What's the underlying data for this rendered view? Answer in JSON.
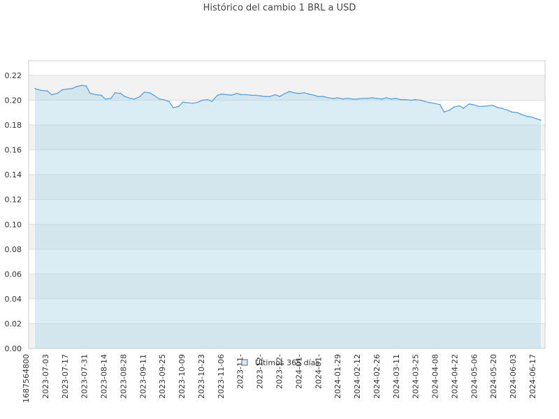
{
  "title": "Histórico del cambio 1 BRL a USD",
  "chart_data": {
    "type": "area",
    "title": "Histórico del cambio 1 BRL a USD",
    "xlabel": "",
    "ylabel": "",
    "ylim": [
      0,
      0.22
    ],
    "yticks": [
      "0.00",
      "0.02",
      "0.04",
      "0.06",
      "0.08",
      "0.10",
      "0.12",
      "0.14",
      "0.16",
      "0.18",
      "0.20",
      "0.22"
    ],
    "xticks": [
      "1687564800",
      "2023-07-03",
      "2023-07-17",
      "2023-07-31",
      "2023-08-14",
      "2023-08-28",
      "2023-09-11",
      "2023-09-25",
      "2023-10-09",
      "2023-10-23",
      "2023-11-06",
      "2023-11-",
      "2023-12-",
      "2023-12-",
      "2024-01-",
      "2024-01-",
      "2024-01-29",
      "2024-02-12",
      "2024-02-26",
      "2024-03-11",
      "2024-03-25",
      "2024-04-08",
      "2024-04-22",
      "2024-05-06",
      "2024-05-20",
      "2024-06-03",
      "2024-06-17"
    ],
    "grid": true,
    "legend_position": "bottom-center",
    "series": [
      {
        "name": "Últimos 365 días",
        "line_color": "#5aa0dc",
        "fill_color": "#add8e6",
        "x": [
          "2023-06-24",
          "2023-06-28",
          "2023-07-03",
          "2023-07-06",
          "2023-07-10",
          "2023-07-14",
          "2023-07-17",
          "2023-07-21",
          "2023-07-24",
          "2023-07-28",
          "2023-07-31",
          "2023-08-03",
          "2023-08-07",
          "2023-08-11",
          "2023-08-14",
          "2023-08-18",
          "2023-08-21",
          "2023-08-25",
          "2023-08-28",
          "2023-09-01",
          "2023-09-04",
          "2023-09-08",
          "2023-09-11",
          "2023-09-15",
          "2023-09-18",
          "2023-09-22",
          "2023-09-25",
          "2023-09-29",
          "2023-10-02",
          "2023-10-06",
          "2023-10-09",
          "2023-10-13",
          "2023-10-16",
          "2023-10-20",
          "2023-10-23",
          "2023-10-27",
          "2023-10-30",
          "2023-11-03",
          "2023-11-06",
          "2023-11-10",
          "2023-11-13",
          "2023-11-17",
          "2023-11-20",
          "2023-11-24",
          "2023-11-27",
          "2023-12-01",
          "2023-12-04",
          "2023-12-08",
          "2023-12-11",
          "2023-12-15",
          "2023-12-18",
          "2023-12-22",
          "2023-12-25",
          "2023-12-29",
          "2024-01-01",
          "2024-01-05",
          "2024-01-08",
          "2024-01-12",
          "2024-01-15",
          "2024-01-19",
          "2024-01-22",
          "2024-01-26",
          "2024-01-29",
          "2024-02-02",
          "2024-02-05",
          "2024-02-09",
          "2024-02-12",
          "2024-02-16",
          "2024-02-19",
          "2024-02-23",
          "2024-02-26",
          "2024-03-01",
          "2024-03-04",
          "2024-03-08",
          "2024-03-11",
          "2024-03-15",
          "2024-03-18",
          "2024-03-22",
          "2024-03-25",
          "2024-03-29",
          "2024-04-01",
          "2024-04-05",
          "2024-04-08",
          "2024-04-12",
          "2024-04-15",
          "2024-04-19",
          "2024-04-22",
          "2024-04-26",
          "2024-04-29",
          "2024-05-03",
          "2024-05-06",
          "2024-05-10",
          "2024-05-13",
          "2024-05-17",
          "2024-05-20",
          "2024-05-24",
          "2024-05-27",
          "2024-05-31",
          "2024-06-03",
          "2024-06-07",
          "2024-06-10",
          "2024-06-14",
          "2024-06-17",
          "2024-06-21",
          "2024-06-24"
        ],
        "values": [
          0.2095,
          0.208,
          0.2075,
          0.2045,
          0.2055,
          0.2085,
          0.209,
          0.2095,
          0.211,
          0.212,
          0.2115,
          0.2055,
          0.2045,
          0.204,
          0.201,
          0.2015,
          0.206,
          0.2055,
          0.203,
          0.2015,
          0.201,
          0.203,
          0.2065,
          0.206,
          0.204,
          0.201,
          0.2005,
          0.199,
          0.194,
          0.195,
          0.1985,
          0.198,
          0.1975,
          0.1985,
          0.2,
          0.2005,
          0.199,
          0.204,
          0.205,
          0.2045,
          0.204,
          0.2055,
          0.2045,
          0.2045,
          0.204,
          0.204,
          0.2035,
          0.203,
          0.203,
          0.2045,
          0.203,
          0.2055,
          0.207,
          0.206,
          0.2055,
          0.206,
          0.205,
          0.204,
          0.203,
          0.203,
          0.202,
          0.2015,
          0.202,
          0.201,
          0.2015,
          0.201,
          0.201,
          0.2015,
          0.2015,
          0.202,
          0.2015,
          0.201,
          0.202,
          0.201,
          0.2015,
          0.2005,
          0.2005,
          0.2,
          0.2005,
          0.2,
          0.199,
          0.198,
          0.1975,
          0.1965,
          0.1905,
          0.192,
          0.1945,
          0.1955,
          0.1935,
          0.197,
          0.1965,
          0.195,
          0.195,
          0.1955,
          0.196,
          0.194,
          0.1935,
          0.192,
          0.1905,
          0.19,
          0.1885,
          0.187,
          0.1865,
          0.185,
          0.184
        ]
      }
    ]
  }
}
